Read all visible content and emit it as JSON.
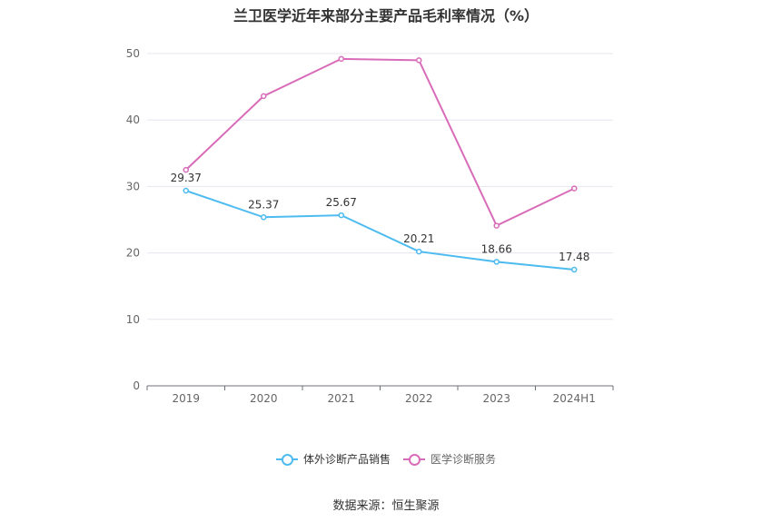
{
  "title": "兰卫医学近年来部分主要产品毛利率情况（%）",
  "source": "数据来源：恒生聚源",
  "chart_data": {
    "type": "line",
    "title": "兰卫医学近年来部分主要产品毛利率情况（%）",
    "categories": [
      "2019",
      "2020",
      "2021",
      "2022",
      "2023",
      "2024H1"
    ],
    "y_ticks": [
      "0",
      "10",
      "20",
      "30",
      "40",
      "50"
    ],
    "ylim": [
      0,
      50
    ],
    "grid": true,
    "legend_position": "bottom",
    "series": [
      {
        "name": "体外诊断产品销售",
        "color": "#4dbbef",
        "values": [
          29.37,
          25.37,
          25.67,
          20.21,
          18.66,
          17.48
        ],
        "labels": [
          "29.37",
          "25.37",
          "25.67",
          "20.21",
          "18.66",
          "17.48"
        ]
      },
      {
        "name": "医学诊断服务",
        "color": "#d96cb8",
        "values": [
          32.5,
          43.6,
          49.2,
          49.0,
          24.1,
          29.7
        ]
      }
    ]
  }
}
